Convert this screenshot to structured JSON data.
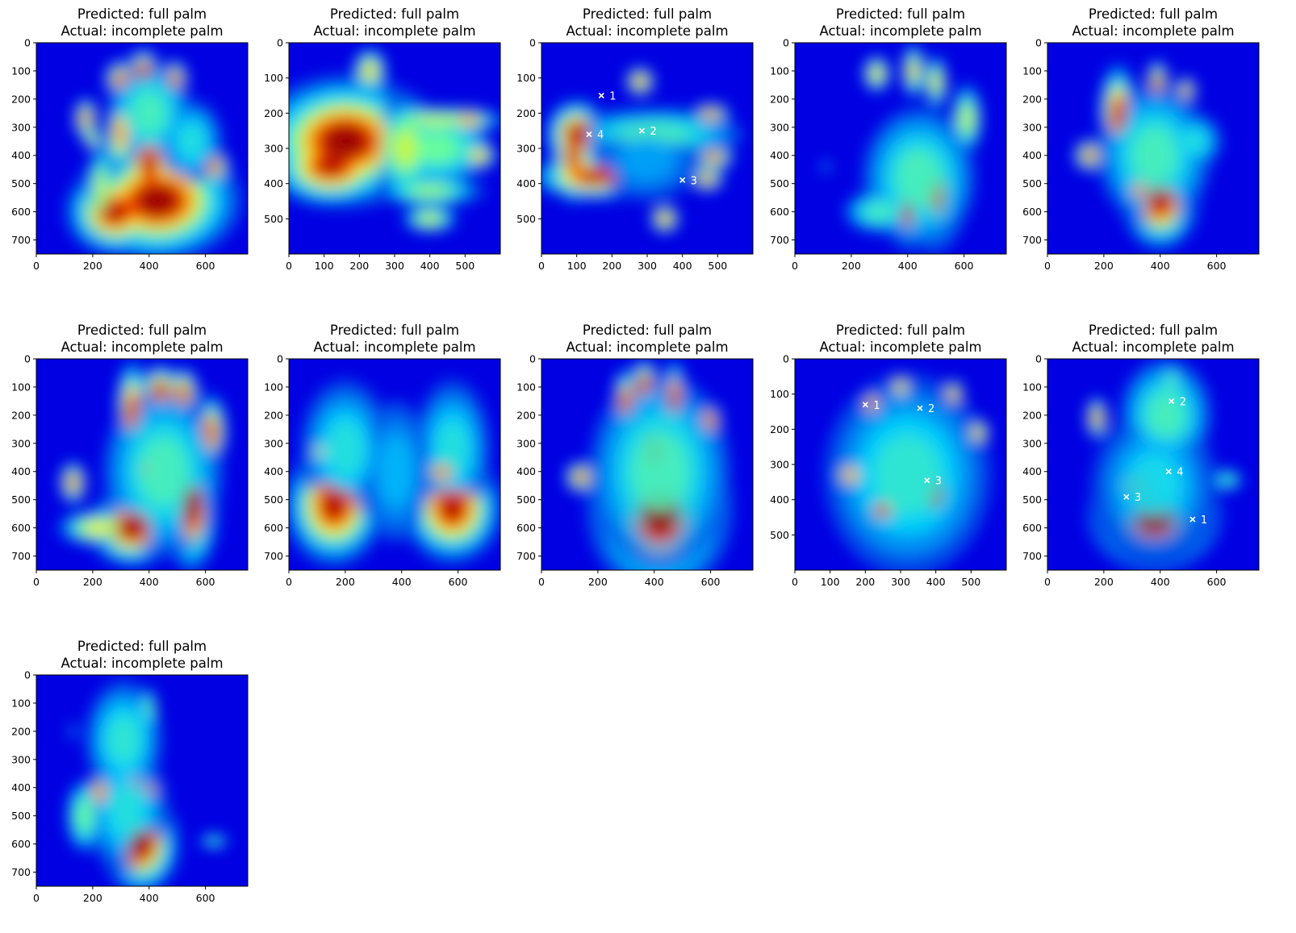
{
  "chart_data": [
    {
      "type": "heatmap",
      "title_lines": [
        "Predicted: full palm",
        "Actual: incomplete palm"
      ],
      "predicted": "full palm",
      "actual": "incomplete palm",
      "xlim": [
        0,
        750
      ],
      "ylim": [
        750,
        0
      ],
      "xticks": [
        0,
        200,
        400,
        600
      ],
      "yticks": [
        0,
        100,
        200,
        300,
        400,
        500,
        600,
        700
      ],
      "blobs": [
        {
          "x": 430,
          "y": 560,
          "rx": 150,
          "ry": 110,
          "v": 1.0
        },
        {
          "x": 400,
          "y": 430,
          "rx": 50,
          "ry": 90,
          "v": 0.95
        },
        {
          "x": 280,
          "y": 600,
          "rx": 90,
          "ry": 80,
          "v": 0.95
        },
        {
          "x": 230,
          "y": 520,
          "rx": 30,
          "ry": 110,
          "v": 0.6
        },
        {
          "x": 300,
          "y": 320,
          "rx": 35,
          "ry": 90,
          "v": 0.75
        },
        {
          "x": 300,
          "y": 130,
          "rx": 30,
          "ry": 35,
          "v": 0.95
        },
        {
          "x": 380,
          "y": 100,
          "rx": 30,
          "ry": 40,
          "v": 1.0
        },
        {
          "x": 490,
          "y": 130,
          "rx": 25,
          "ry": 35,
          "v": 0.95
        },
        {
          "x": 175,
          "y": 270,
          "rx": 22,
          "ry": 40,
          "v": 0.85
        },
        {
          "x": 200,
          "y": 340,
          "rx": 20,
          "ry": 25,
          "v": 0.7
        },
        {
          "x": 630,
          "y": 440,
          "rx": 30,
          "ry": 35,
          "v": 0.9
        },
        {
          "x": 400,
          "y": 250,
          "rx": 120,
          "ry": 150,
          "v": 0.45
        },
        {
          "x": 550,
          "y": 350,
          "rx": 90,
          "ry": 120,
          "v": 0.4
        }
      ],
      "annotations": []
    },
    {
      "type": "heatmap",
      "title_lines": [
        "Predicted: full palm",
        "Actual: incomplete palm"
      ],
      "predicted": "full palm",
      "actual": "incomplete palm",
      "xlim": [
        0,
        600
      ],
      "ylim": [
        600,
        0
      ],
      "xticks": [
        0,
        100,
        200,
        300,
        400,
        500
      ],
      "yticks": [
        0,
        100,
        200,
        300,
        400,
        500
      ],
      "blobs": [
        {
          "x": 160,
          "y": 280,
          "rx": 130,
          "ry": 95,
          "v": 1.0
        },
        {
          "x": 120,
          "y": 350,
          "rx": 90,
          "ry": 60,
          "v": 0.95
        },
        {
          "x": 230,
          "y": 80,
          "rx": 30,
          "ry": 40,
          "v": 0.7
        },
        {
          "x": 420,
          "y": 220,
          "rx": 130,
          "ry": 25,
          "v": 0.6
        },
        {
          "x": 420,
          "y": 300,
          "rx": 120,
          "ry": 80,
          "v": 0.5
        },
        {
          "x": 540,
          "y": 320,
          "rx": 30,
          "ry": 25,
          "v": 0.75
        },
        {
          "x": 510,
          "y": 220,
          "rx": 40,
          "ry": 20,
          "v": 0.8
        },
        {
          "x": 400,
          "y": 500,
          "rx": 50,
          "ry": 25,
          "v": 0.6
        },
        {
          "x": 400,
          "y": 420,
          "rx": 100,
          "ry": 30,
          "v": 0.55
        },
        {
          "x": 330,
          "y": 300,
          "rx": 60,
          "ry": 100,
          "v": 0.6
        }
      ],
      "annotations": []
    },
    {
      "type": "heatmap",
      "title_lines": [
        "Predicted: full palm",
        "Actual: incomplete palm"
      ],
      "predicted": "full palm",
      "actual": "incomplete palm",
      "xlim": [
        0,
        600
      ],
      "ylim": [
        600,
        0
      ],
      "xticks": [
        0,
        100,
        200,
        300,
        400,
        500
      ],
      "yticks": [
        0,
        100,
        200,
        300,
        400,
        500
      ],
      "blobs": [
        {
          "x": 100,
          "y": 260,
          "rx": 45,
          "ry": 50,
          "v": 1.0
        },
        {
          "x": 90,
          "y": 320,
          "rx": 30,
          "ry": 70,
          "v": 0.95
        },
        {
          "x": 150,
          "y": 380,
          "rx": 90,
          "ry": 35,
          "v": 0.95
        },
        {
          "x": 280,
          "y": 110,
          "rx": 25,
          "ry": 25,
          "v": 0.8
        },
        {
          "x": 480,
          "y": 205,
          "rx": 30,
          "ry": 18,
          "v": 0.85
        },
        {
          "x": 490,
          "y": 325,
          "rx": 30,
          "ry": 20,
          "v": 0.85
        },
        {
          "x": 470,
          "y": 385,
          "rx": 25,
          "ry": 20,
          "v": 0.85
        },
        {
          "x": 350,
          "y": 500,
          "rx": 25,
          "ry": 25,
          "v": 0.8
        },
        {
          "x": 320,
          "y": 260,
          "rx": 200,
          "ry": 60,
          "v": 0.45
        },
        {
          "x": 300,
          "y": 330,
          "rx": 150,
          "ry": 120,
          "v": 0.3
        }
      ],
      "annotations": [
        {
          "x": 170,
          "y": 150,
          "label": "1"
        },
        {
          "x": 285,
          "y": 250,
          "label": "2"
        },
        {
          "x": 400,
          "y": 390,
          "label": "3"
        },
        {
          "x": 135,
          "y": 260,
          "label": "4"
        }
      ]
    },
    {
      "type": "heatmap",
      "title_lines": [
        "Predicted: full palm",
        "Actual: incomplete palm"
      ],
      "predicted": "full palm",
      "actual": "incomplete palm",
      "xlim": [
        0,
        750
      ],
      "ylim": [
        750,
        0
      ],
      "xticks": [
        0,
        200,
        400,
        600
      ],
      "yticks": [
        0,
        100,
        200,
        300,
        400,
        500,
        600,
        700
      ],
      "blobs": [
        {
          "x": 500,
          "y": 530,
          "rx": 55,
          "ry": 110,
          "v": 0.9
        },
        {
          "x": 400,
          "y": 600,
          "rx": 30,
          "ry": 70,
          "v": 0.95
        },
        {
          "x": 420,
          "y": 420,
          "rx": 40,
          "ry": 30,
          "v": 0.7
        },
        {
          "x": 440,
          "y": 480,
          "rx": 160,
          "ry": 200,
          "v": 0.45
        },
        {
          "x": 300,
          "y": 600,
          "rx": 100,
          "ry": 60,
          "v": 0.45
        },
        {
          "x": 290,
          "y": 110,
          "rx": 30,
          "ry": 40,
          "v": 0.7
        },
        {
          "x": 420,
          "y": 100,
          "rx": 25,
          "ry": 60,
          "v": 0.7
        },
        {
          "x": 500,
          "y": 140,
          "rx": 25,
          "ry": 60,
          "v": 0.65
        },
        {
          "x": 610,
          "y": 270,
          "rx": 35,
          "ry": 80,
          "v": 0.6
        },
        {
          "x": 110,
          "y": 440,
          "rx": 15,
          "ry": 20,
          "v": 0.35
        }
      ],
      "annotations": []
    },
    {
      "type": "heatmap",
      "title_lines": [
        "Predicted: full palm",
        "Actual: incomplete palm"
      ],
      "predicted": "full palm",
      "actual": "incomplete palm",
      "xlim": [
        0,
        750
      ],
      "ylim": [
        750,
        0
      ],
      "xticks": [
        0,
        200,
        400,
        600
      ],
      "yticks": [
        0,
        100,
        200,
        300,
        400,
        500,
        600,
        700
      ],
      "blobs": [
        {
          "x": 400,
          "y": 560,
          "rx": 70,
          "ry": 90,
          "v": 0.95
        },
        {
          "x": 330,
          "y": 520,
          "rx": 40,
          "ry": 40,
          "v": 0.8
        },
        {
          "x": 250,
          "y": 250,
          "rx": 35,
          "ry": 90,
          "v": 0.95
        },
        {
          "x": 390,
          "y": 140,
          "rx": 20,
          "ry": 40,
          "v": 1.0
        },
        {
          "x": 490,
          "y": 170,
          "rx": 20,
          "ry": 25,
          "v": 0.9
        },
        {
          "x": 150,
          "y": 400,
          "rx": 30,
          "ry": 30,
          "v": 0.9
        },
        {
          "x": 380,
          "y": 400,
          "rx": 160,
          "ry": 200,
          "v": 0.45
        },
        {
          "x": 520,
          "y": 350,
          "rx": 80,
          "ry": 80,
          "v": 0.4
        }
      ],
      "annotations": []
    },
    {
      "type": "heatmap",
      "title_lines": [
        "Predicted: full palm",
        "Actual: incomplete palm"
      ],
      "predicted": "full palm",
      "actual": "incomplete palm",
      "xlim": [
        0,
        750
      ],
      "ylim": [
        750,
        0
      ],
      "xticks": [
        0,
        200,
        400,
        600
      ],
      "yticks": [
        0,
        100,
        200,
        300,
        400,
        500,
        600,
        700
      ],
      "blobs": [
        {
          "x": 340,
          "y": 600,
          "rx": 80,
          "ry": 70,
          "v": 1.0
        },
        {
          "x": 550,
          "y": 520,
          "rx": 50,
          "ry": 120,
          "v": 1.0
        },
        {
          "x": 340,
          "y": 180,
          "rx": 30,
          "ry": 90,
          "v": 0.95
        },
        {
          "x": 440,
          "y": 110,
          "rx": 35,
          "ry": 45,
          "v": 1.0
        },
        {
          "x": 520,
          "y": 120,
          "rx": 30,
          "ry": 45,
          "v": 0.95
        },
        {
          "x": 620,
          "y": 260,
          "rx": 30,
          "ry": 70,
          "v": 0.9
        },
        {
          "x": 130,
          "y": 440,
          "rx": 25,
          "ry": 40,
          "v": 0.85
        },
        {
          "x": 220,
          "y": 600,
          "rx": 90,
          "ry": 40,
          "v": 0.65
        },
        {
          "x": 450,
          "y": 400,
          "rx": 170,
          "ry": 240,
          "v": 0.45
        },
        {
          "x": 390,
          "y": 390,
          "rx": 20,
          "ry": 20,
          "v": 0.9
        }
      ],
      "annotations": []
    },
    {
      "type": "heatmap",
      "title_lines": [
        "Predicted: full palm",
        "Actual: incomplete palm"
      ],
      "predicted": "full palm",
      "actual": "incomplete palm",
      "xlim": [
        0,
        750
      ],
      "ylim": [
        750,
        0
      ],
      "xticks": [
        0,
        200,
        400,
        600
      ],
      "yticks": [
        0,
        100,
        200,
        300,
        400,
        500,
        600,
        700
      ],
      "blobs": [
        {
          "x": 160,
          "y": 520,
          "rx": 90,
          "ry": 110,
          "v": 0.95
        },
        {
          "x": 580,
          "y": 530,
          "rx": 90,
          "ry": 100,
          "v": 0.95
        },
        {
          "x": 200,
          "y": 320,
          "rx": 130,
          "ry": 200,
          "v": 0.4
        },
        {
          "x": 580,
          "y": 320,
          "rx": 110,
          "ry": 200,
          "v": 0.4
        },
        {
          "x": 380,
          "y": 400,
          "rx": 120,
          "ry": 250,
          "v": 0.32
        },
        {
          "x": 110,
          "y": 330,
          "rx": 20,
          "ry": 25,
          "v": 0.7
        },
        {
          "x": 550,
          "y": 400,
          "rx": 50,
          "ry": 40,
          "v": 0.8
        }
      ],
      "annotations": []
    },
    {
      "type": "heatmap",
      "title_lines": [
        "Predicted: full palm",
        "Actual: incomplete palm"
      ],
      "predicted": "full palm",
      "actual": "incomplete palm",
      "xlim": [
        0,
        750
      ],
      "ylim": [
        750,
        0
      ],
      "xticks": [
        0,
        200,
        400,
        600
      ],
      "yticks": [
        0,
        100,
        200,
        300,
        400,
        500,
        600,
        700
      ],
      "blobs": [
        {
          "x": 420,
          "y": 540,
          "rx": 130,
          "ry": 150,
          "v": 1.0
        },
        {
          "x": 400,
          "y": 330,
          "rx": 70,
          "ry": 100,
          "v": 0.95
        },
        {
          "x": 300,
          "y": 150,
          "rx": 25,
          "ry": 60,
          "v": 0.95
        },
        {
          "x": 365,
          "y": 90,
          "rx": 25,
          "ry": 45,
          "v": 1.0
        },
        {
          "x": 470,
          "y": 140,
          "rx": 25,
          "ry": 70,
          "v": 0.95
        },
        {
          "x": 595,
          "y": 220,
          "rx": 25,
          "ry": 35,
          "v": 0.95
        },
        {
          "x": 140,
          "y": 420,
          "rx": 30,
          "ry": 30,
          "v": 0.9
        },
        {
          "x": 420,
          "y": 400,
          "rx": 200,
          "ry": 280,
          "v": 0.45
        }
      ],
      "annotations": []
    },
    {
      "type": "heatmap",
      "title_lines": [
        "Predicted: full palm",
        "Actual: incomplete palm"
      ],
      "predicted": "full palm",
      "actual": "incomplete palm",
      "xlim": [
        0,
        600
      ],
      "ylim": [
        600,
        0
      ],
      "xticks": [
        0,
        100,
        200,
        300,
        400,
        500
      ],
      "yticks": [
        0,
        100,
        200,
        300,
        400,
        500
      ],
      "blobs": [
        {
          "x": 400,
          "y": 380,
          "rx": 35,
          "ry": 80,
          "v": 0.95
        },
        {
          "x": 250,
          "y": 430,
          "rx": 50,
          "ry": 40,
          "v": 0.85
        },
        {
          "x": 220,
          "y": 130,
          "rx": 20,
          "ry": 25,
          "v": 0.85
        },
        {
          "x": 300,
          "y": 80,
          "rx": 20,
          "ry": 25,
          "v": 0.75
        },
        {
          "x": 450,
          "y": 100,
          "rx": 18,
          "ry": 25,
          "v": 0.8
        },
        {
          "x": 520,
          "y": 210,
          "rx": 20,
          "ry": 25,
          "v": 0.75
        },
        {
          "x": 160,
          "y": 330,
          "rx": 35,
          "ry": 30,
          "v": 0.75
        },
        {
          "x": 320,
          "y": 330,
          "rx": 190,
          "ry": 230,
          "v": 0.42
        }
      ],
      "annotations": [
        {
          "x": 200,
          "y": 130,
          "label": "1"
        },
        {
          "x": 355,
          "y": 140,
          "label": "2"
        },
        {
          "x": 375,
          "y": 345,
          "label": "3"
        }
      ]
    },
    {
      "type": "heatmap",
      "title_lines": [
        "Predicted: full palm",
        "Actual: incomplete palm"
      ],
      "predicted": "full palm",
      "actual": "incomplete palm",
      "xlim": [
        0,
        750
      ],
      "ylim": [
        750,
        0
      ],
      "xticks": [
        0,
        200,
        400,
        600
      ],
      "yticks": [
        0,
        100,
        200,
        300,
        400,
        500,
        600,
        700
      ],
      "blobs": [
        {
          "x": 380,
          "y": 560,
          "rx": 120,
          "ry": 100,
          "v": 1.0
        },
        {
          "x": 330,
          "y": 450,
          "rx": 90,
          "ry": 70,
          "v": 0.85
        },
        {
          "x": 175,
          "y": 210,
          "rx": 20,
          "ry": 40,
          "v": 0.85
        },
        {
          "x": 420,
          "y": 200,
          "rx": 130,
          "ry": 160,
          "v": 0.45
        },
        {
          "x": 380,
          "y": 450,
          "rx": 180,
          "ry": 220,
          "v": 0.38
        },
        {
          "x": 640,
          "y": 430,
          "rx": 40,
          "ry": 30,
          "v": 0.45
        },
        {
          "x": 440,
          "y": 80,
          "rx": 20,
          "ry": 50,
          "v": 0.5
        }
      ],
      "annotations": [
        {
          "x": 440,
          "y": 150,
          "label": "2"
        },
        {
          "x": 430,
          "y": 400,
          "label": "4"
        },
        {
          "x": 280,
          "y": 490,
          "label": "3"
        },
        {
          "x": 515,
          "y": 570,
          "label": "1"
        }
      ]
    },
    {
      "type": "heatmap",
      "title_lines": [
        "Predicted: full palm",
        "Actual: incomplete palm"
      ],
      "predicted": "full palm",
      "actual": "incomplete palm",
      "xlim": [
        0,
        750
      ],
      "ylim": [
        750,
        0
      ],
      "xticks": [
        0,
        200,
        400,
        600
      ],
      "yticks": [
        0,
        100,
        200,
        300,
        400,
        500,
        600,
        700
      ],
      "blobs": [
        {
          "x": 370,
          "y": 600,
          "rx": 70,
          "ry": 90,
          "v": 1.0
        },
        {
          "x": 350,
          "y": 380,
          "rx": 30,
          "ry": 25,
          "v": 0.85
        },
        {
          "x": 400,
          "y": 410,
          "rx": 30,
          "ry": 25,
          "v": 0.85
        },
        {
          "x": 230,
          "y": 420,
          "rx": 35,
          "ry": 50,
          "v": 0.8
        },
        {
          "x": 170,
          "y": 500,
          "rx": 50,
          "ry": 100,
          "v": 0.5
        },
        {
          "x": 320,
          "y": 480,
          "rx": 120,
          "ry": 180,
          "v": 0.4
        },
        {
          "x": 310,
          "y": 230,
          "rx": 110,
          "ry": 170,
          "v": 0.42
        },
        {
          "x": 400,
          "y": 120,
          "rx": 20,
          "ry": 60,
          "v": 0.5
        },
        {
          "x": 130,
          "y": 200,
          "rx": 15,
          "ry": 30,
          "v": 0.3
        },
        {
          "x": 630,
          "y": 590,
          "rx": 40,
          "ry": 20,
          "v": 0.45
        }
      ],
      "annotations": []
    }
  ]
}
